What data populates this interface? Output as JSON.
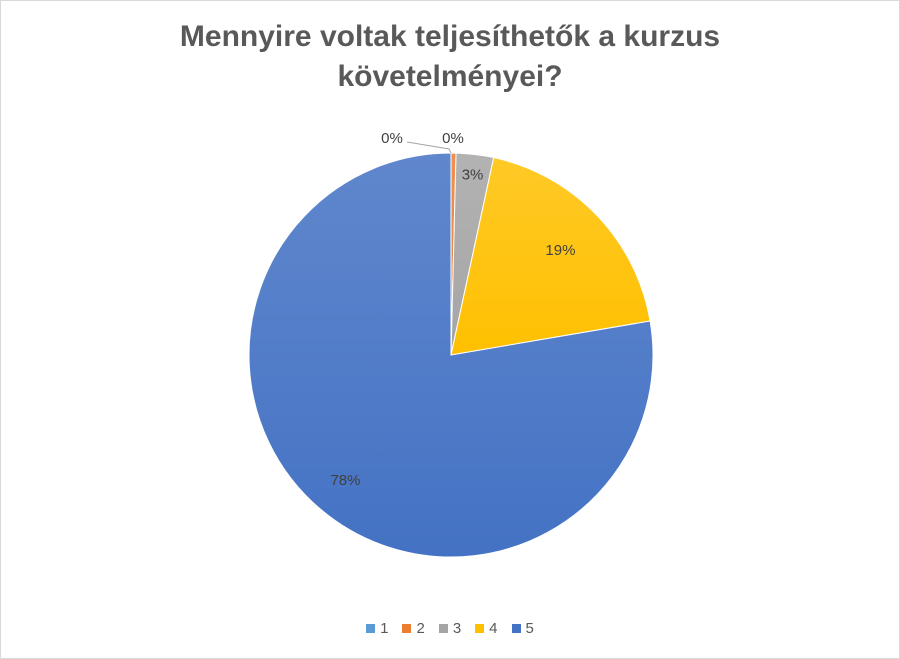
{
  "chart_data": {
    "type": "pie",
    "title_lines": [
      "Mennyire voltak teljesíthetők a kurzus",
      "követelményei?"
    ],
    "categories": [
      "1",
      "2",
      "3",
      "4",
      "5"
    ],
    "values": [
      0,
      0.4,
      3,
      19,
      78
    ],
    "data_labels": [
      "0%",
      "0%",
      "3%",
      "19%",
      "78%"
    ],
    "colors": [
      "#5b9bd5",
      "#ed7d31",
      "#a5a5a5",
      "#ffc000",
      "#4472c4"
    ],
    "legend_position": "bottom"
  }
}
